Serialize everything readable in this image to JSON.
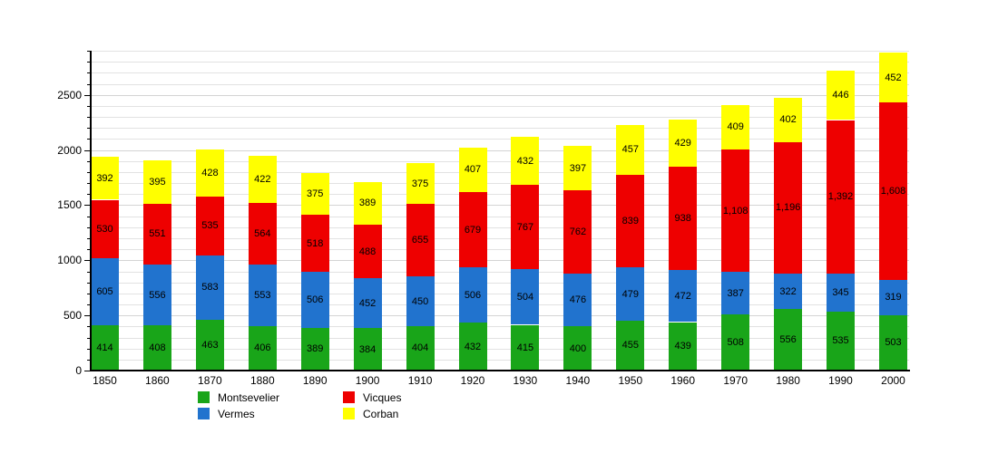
{
  "chart_data": {
    "type": "bar",
    "stacked": true,
    "title": "",
    "xlabel": "",
    "ylabel": "",
    "categories": [
      "1850",
      "1860",
      "1870",
      "1880",
      "1890",
      "1900",
      "1910",
      "1920",
      "1930",
      "1940",
      "1950",
      "1960",
      "1970",
      "1980",
      "1990",
      "2000"
    ],
    "series": [
      {
        "name": "Montsevelier",
        "color": "#19a519",
        "values": [
          414,
          408,
          463,
          406,
          389,
          384,
          404,
          432,
          415,
          400,
          455,
          439,
          508,
          556,
          535,
          503
        ]
      },
      {
        "name": "Vermes",
        "color": "#2173ce",
        "values": [
          605,
          556,
          583,
          553,
          506,
          452,
          450,
          506,
          504,
          476,
          479,
          472,
          387,
          322,
          345,
          319
        ]
      },
      {
        "name": "Vicques",
        "color": "#ee0000",
        "values": [
          530,
          551,
          535,
          564,
          518,
          488,
          655,
          679,
          767,
          762,
          839,
          938,
          1108,
          1196,
          1392,
          1608
        ]
      },
      {
        "name": "Corban",
        "color": "#ffff00",
        "values": [
          392,
          395,
          428,
          422,
          375,
          389,
          375,
          407,
          432,
          397,
          457,
          429,
          409,
          402,
          446,
          452
        ]
      }
    ],
    "ylim": [
      0,
      2900
    ],
    "yticks": [
      0,
      500,
      1000,
      1500,
      2000,
      2500
    ],
    "minor_tick_step": 100,
    "grid": true,
    "legend_position": "bottom",
    "value_labels": true,
    "background_color": "#ffffff",
    "axis_color": "#000000"
  }
}
